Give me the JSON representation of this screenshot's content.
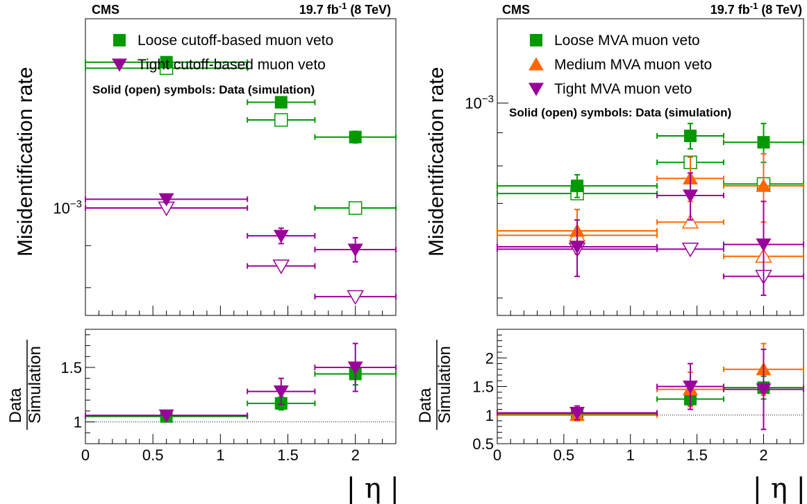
{
  "experiment": "CMS",
  "lumi": {
    "value": "19.7 fb",
    "sup": "-1",
    "energy": " (8 TeV)"
  },
  "xlabel": "| η |",
  "ylabel_main": "Misidentification rate",
  "ratio_ylabel_num": "Data",
  "ratio_ylabel_den": "Simulation",
  "note": "Solid (open) symbols: Data (simulation)",
  "colors": {
    "green": "#009900",
    "orange": "#FF6600",
    "purple": "#990099"
  },
  "chart_data": [
    {
      "type": "scatter",
      "panel": "left",
      "xlabel": "| η |",
      "ylabel": "Misidentification rate",
      "yscale": "log",
      "xlim": [
        0,
        2.3
      ],
      "ylim": [
        0.00074,
        0.0017
      ],
      "ytick_label": "10^{-3}",
      "xticks": [
        "0",
        "0.5",
        "1",
        "1.5",
        "2"
      ],
      "bins": [
        [
          0,
          1.2
        ],
        [
          1.2,
          1.7
        ],
        [
          1.7,
          2.3
        ]
      ],
      "bin_centers": [
        0.6,
        1.45,
        2.0
      ],
      "legend_position": "top-right",
      "series": [
        {
          "name": "Loose cutoff-based muon veto",
          "color": "green",
          "marker": "square",
          "data": [
            0.001505,
            0.001345,
            0.00122
          ],
          "data_err": [
            1.2e-05,
            1.5e-05,
            2e-05
          ],
          "sim": [
            0.00148,
            0.00128,
            0.001
          ]
        },
        {
          "name": "Tight cutoff-based muon veto",
          "color": "purple",
          "marker": "triangle-down",
          "data": [
            0.001025,
            0.000925,
            0.00089
          ],
          "data_err": [
            1e-05,
            2e-05,
            3e-05
          ],
          "sim": [
            0.001,
            0.00085,
            0.00078
          ]
        }
      ],
      "ratio": {
        "ylabel": "Data / Simulation",
        "ylim": [
          0.8,
          1.85
        ],
        "yticks": [
          "1",
          "1.5"
        ],
        "series": [
          {
            "name": "Loose cutoff-based muon veto",
            "color": "green",
            "marker": "square",
            "values": [
              1.05,
              1.17,
              1.44
            ],
            "err": [
              0.02,
              0.06,
              0.1
            ]
          },
          {
            "name": "Tight cutoff-based muon veto",
            "color": "purple",
            "marker": "triangle-down",
            "values": [
              1.06,
              1.28,
              1.5
            ],
            "err": [
              0.02,
              0.12,
              0.22
            ]
          }
        ]
      }
    },
    {
      "type": "scatter",
      "panel": "right",
      "xlabel": "| η |",
      "ylabel": "Misidentification rate",
      "yscale": "log",
      "xlim": [
        0,
        2.3
      ],
      "ylim": [
        0.00047,
        0.00135
      ],
      "ytick_label": "10^{-3}",
      "xticks": [
        "0",
        "0.5",
        "1",
        "1.5",
        "2"
      ],
      "bins": [
        [
          0,
          1.2
        ],
        [
          1.2,
          1.7
        ],
        [
          1.7,
          2.3
        ]
      ],
      "bin_centers": [
        0.6,
        1.45,
        2.0
      ],
      "legend_position": "top-right",
      "series": [
        {
          "name": "Loose MVA muon veto",
          "color": "green",
          "marker": "square",
          "data": [
            0.000745,
            0.00089,
            0.00087
          ],
          "data_err": [
            3e-05,
            4e-05,
            6e-05
          ],
          "sim": [
            0.000725,
            0.00081,
            0.00075
          ]
        },
        {
          "name": "Medium MVA muon veto",
          "color": "orange",
          "marker": "triangle-up",
          "data": [
            0.000635,
            0.000765,
            0.000745
          ],
          "data_err": [
            5e-05,
            6e-05,
            9e-05
          ],
          "sim": [
            0.000625,
            0.000655,
            0.00058
          ]
        },
        {
          "name": "Tight MVA muon veto",
          "color": "purple",
          "marker": "triangle-down",
          "data": [
            0.0006,
            0.00072,
            0.000605
          ],
          "data_err": [
            6e-05,
            6e-05,
            0.0001
          ],
          "sim": [
            0.000595,
            0.000595,
            0.00054
          ]
        }
      ],
      "ratio": {
        "ylabel": "Data / Simulation",
        "ylim": [
          0.5,
          2.5
        ],
        "yticks": [
          "0.5",
          "1",
          "1.5",
          "2"
        ],
        "series": [
          {
            "name": "Loose MVA muon veto",
            "color": "green",
            "marker": "square",
            "values": [
              1.02,
              1.28,
              1.48
            ],
            "err": [
              0.05,
              0.12,
              0.2
            ]
          },
          {
            "name": "Medium MVA muon veto",
            "color": "orange",
            "marker": "triangle-up",
            "values": [
              1.0,
              1.45,
              1.8
            ],
            "err": [
              0.1,
              0.3,
              0.45
            ]
          },
          {
            "name": "Tight MVA muon veto",
            "color": "purple",
            "marker": "triangle-down",
            "values": [
              1.04,
              1.5,
              1.45
            ],
            "err": [
              0.12,
              0.4,
              0.7
            ]
          }
        ]
      }
    }
  ]
}
